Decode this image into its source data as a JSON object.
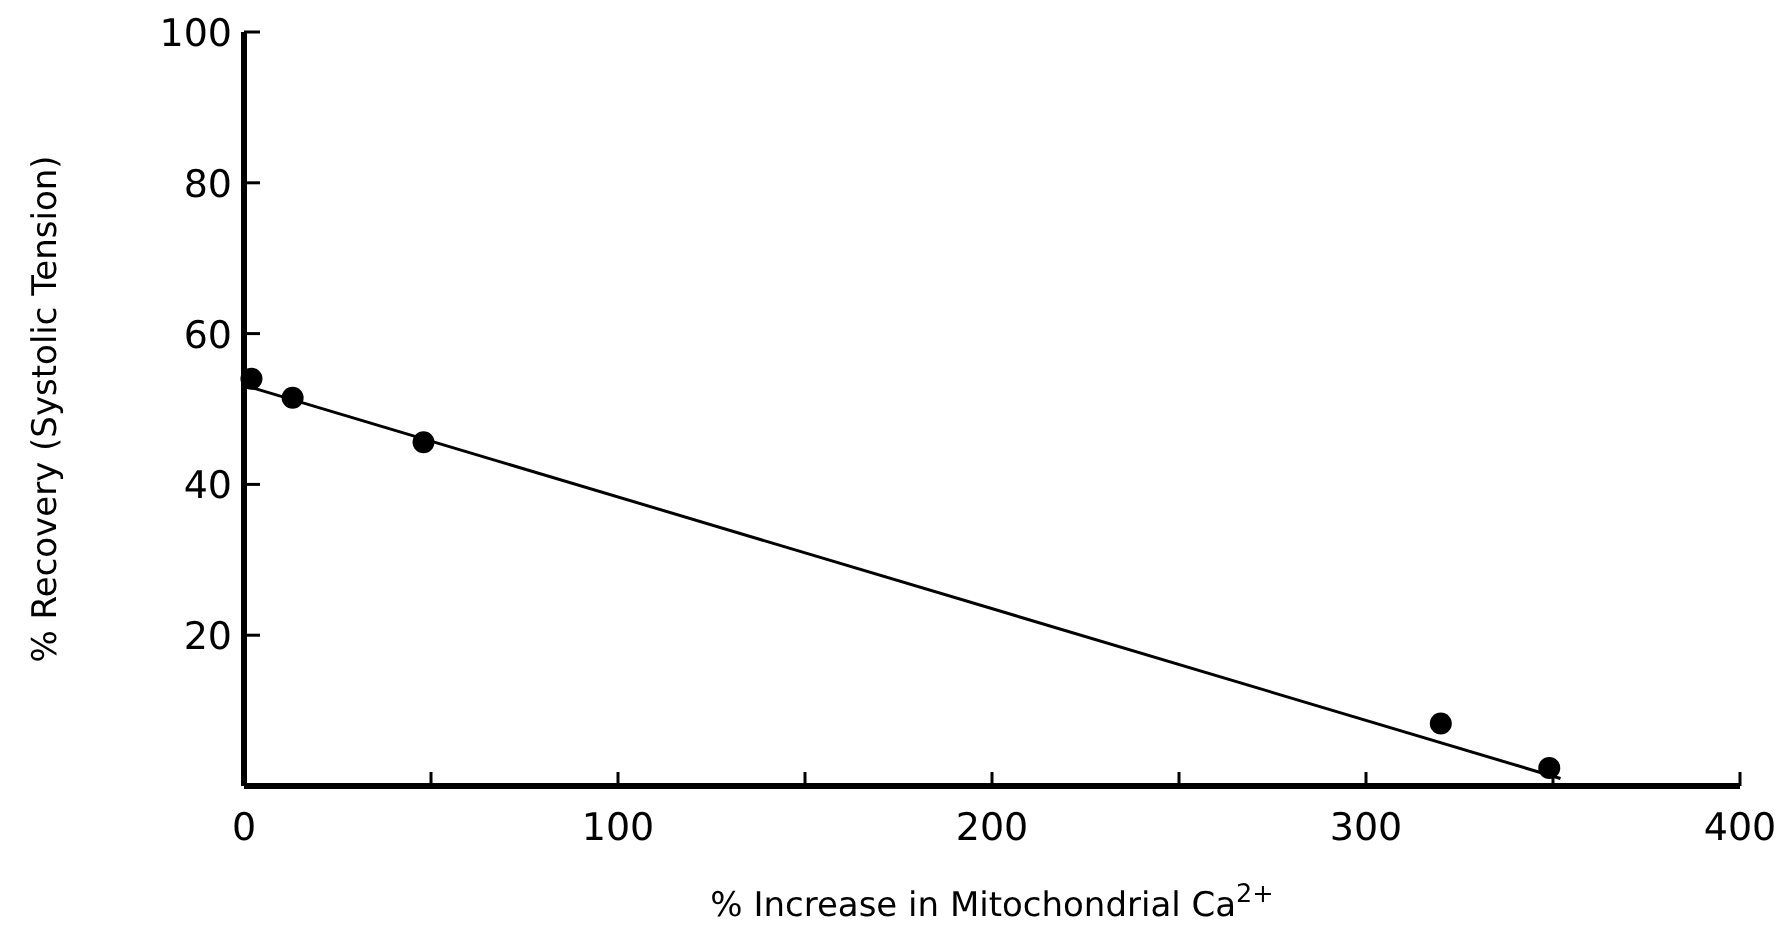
{
  "chart_data": {
    "type": "scatter",
    "xlabel": "% Increase in Mitochondrial Ca$^{2+}$",
    "ylabel": "% Recovery (Systolic Tension)",
    "xlim": [
      0,
      400
    ],
    "ylim": [
      0,
      100
    ],
    "xticks": [
      0,
      {
        "value": 50,
        "label": null
      },
      100,
      {
        "value": 150,
        "label": null
      },
      200,
      {
        "value": 250,
        "label": null
      },
      300,
      {
        "value": 350,
        "label": null
      },
      400
    ],
    "yticks": [
      20,
      40,
      60,
      80,
      100
    ],
    "series": [
      {
        "marker": "circle",
        "color": "#000000",
        "x": [
          2,
          13,
          48,
          320,
          349
        ],
        "values": [
          54,
          51.5,
          45.6,
          8.3,
          2.4
        ]
      },
      {
        "type": "line",
        "color": "#000000",
        "x": [
          1,
          352
        ],
        "values": [
          53,
          1
        ],
        "line_style": "solid"
      }
    ]
  }
}
